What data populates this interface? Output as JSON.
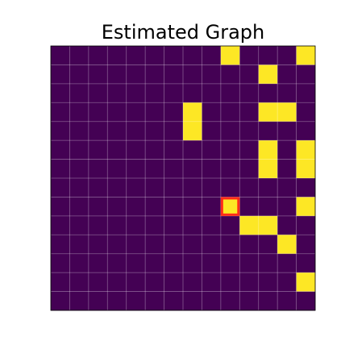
{
  "chart_data": {
    "type": "heatmap",
    "title": "Estimated Graph",
    "values": [
      [
        0,
        0,
        0,
        0,
        0,
        0,
        0,
        0,
        0,
        1,
        0,
        0,
        0,
        1
      ],
      [
        0,
        0,
        0,
        0,
        0,
        0,
        0,
        0,
        0,
        0,
        0,
        1,
        0,
        0
      ],
      [
        0,
        0,
        0,
        0,
        0,
        0,
        0,
        0,
        0,
        0,
        0,
        0,
        0,
        0
      ],
      [
        0,
        0,
        0,
        0,
        0,
        0,
        0,
        1,
        0,
        0,
        0,
        1,
        1,
        0
      ],
      [
        0,
        0,
        0,
        0,
        0,
        0,
        0,
        1,
        0,
        0,
        0,
        0,
        0,
        0
      ],
      [
        0,
        0,
        0,
        0,
        0,
        0,
        0,
        0,
        0,
        0,
        0,
        1,
        0,
        1
      ],
      [
        0,
        0,
        0,
        0,
        0,
        0,
        0,
        0,
        0,
        0,
        0,
        1,
        0,
        1
      ],
      [
        0,
        0,
        0,
        0,
        0,
        0,
        0,
        0,
        0,
        0,
        0,
        0,
        0,
        0
      ],
      [
        0,
        0,
        0,
        0,
        0,
        0,
        0,
        0,
        0,
        1,
        0,
        0,
        0,
        1
      ],
      [
        0,
        0,
        0,
        0,
        0,
        0,
        0,
        0,
        0,
        0,
        1,
        1,
        0,
        0
      ],
      [
        0,
        0,
        0,
        0,
        0,
        0,
        0,
        0,
        0,
        0,
        0,
        0,
        1,
        0
      ],
      [
        0,
        0,
        0,
        0,
        0,
        0,
        0,
        0,
        0,
        0,
        0,
        0,
        0,
        0
      ],
      [
        0,
        0,
        0,
        0,
        0,
        0,
        0,
        0,
        0,
        0,
        0,
        0,
        0,
        1
      ],
      [
        0,
        0,
        0,
        0,
        0,
        0,
        0,
        0,
        0,
        0,
        0,
        0,
        0,
        0
      ]
    ],
    "colors": [
      "#440154",
      "#fde725"
    ],
    "grid": true,
    "highlight": [
      8,
      9
    ],
    "highlight_color": "#ff2a1a"
  }
}
